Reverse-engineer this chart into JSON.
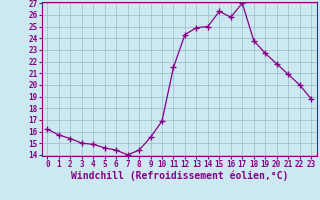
{
  "x": [
    0,
    1,
    2,
    3,
    4,
    5,
    6,
    7,
    8,
    9,
    10,
    11,
    12,
    13,
    14,
    15,
    16,
    17,
    18,
    19,
    20,
    21,
    22,
    23
  ],
  "y": [
    16.2,
    15.7,
    15.4,
    15.0,
    14.9,
    14.6,
    14.4,
    14.0,
    14.4,
    15.5,
    16.9,
    21.5,
    24.3,
    24.9,
    25.0,
    26.3,
    25.8,
    27.0,
    23.8,
    22.7,
    21.8,
    20.9,
    20.0,
    18.8
  ],
  "line_color": "#880088",
  "marker": "+",
  "marker_size": 4,
  "bg_color": "#cce8f0",
  "grid_color": "#99bbcc",
  "xlabel": "Windchill (Refroidissement éolien,°C)",
  "ylim": [
    14,
    27
  ],
  "xlim": [
    -0.5,
    23.5
  ],
  "yticks": [
    14,
    15,
    16,
    17,
    18,
    19,
    20,
    21,
    22,
    23,
    24,
    25,
    26,
    27
  ],
  "xticks": [
    0,
    1,
    2,
    3,
    4,
    5,
    6,
    7,
    8,
    9,
    10,
    11,
    12,
    13,
    14,
    15,
    16,
    17,
    18,
    19,
    20,
    21,
    22,
    23
  ],
  "tick_label_color": "#880088",
  "tick_label_size": 5.5,
  "xlabel_size": 7,
  "xlabel_color": "#880088",
  "spine_color": "#880088"
}
